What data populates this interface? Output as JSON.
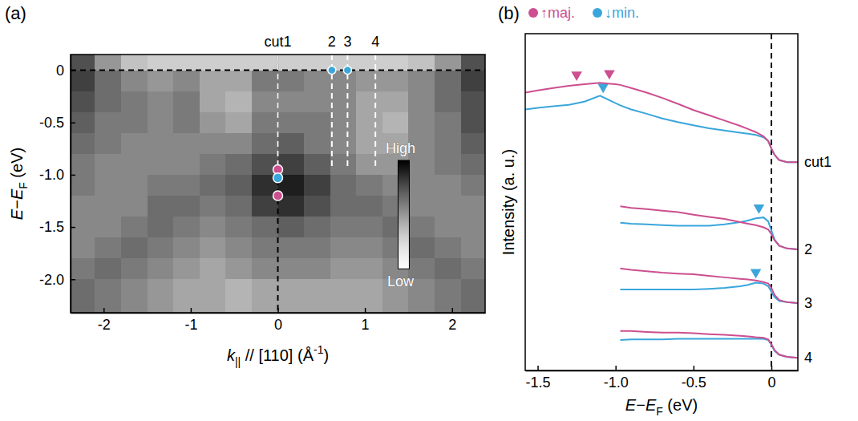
{
  "chart_data": [
    {
      "type": "heatmap",
      "label": "(a)",
      "xlabel": [
        {
          "text": "k",
          "style": "italic"
        },
        {
          "text": "||",
          "style": "sub"
        },
        {
          "text": " // [110] (Å"
        },
        {
          "text": "-1",
          "style": "sup"
        },
        {
          "text": ")"
        }
      ],
      "ylabel": [
        {
          "text": "E",
          "style": "italic"
        },
        {
          "text": "−"
        },
        {
          "text": "E",
          "style": "italic"
        },
        {
          "text": "F",
          "style": "sub"
        },
        {
          "text": " (eV)"
        }
      ],
      "xlim": [
        -2.38,
        2.38
      ],
      "ylim": [
        -2.32,
        0.15
      ],
      "xticks": [
        -2,
        -1,
        0,
        1,
        2
      ],
      "yticks": [
        0,
        -0.5,
        {
          "value": -1,
          "label": "-1.0"
        },
        -1.5,
        {
          "value": -2,
          "label": "-2.0"
        }
      ],
      "x_bins": [
        -2.38,
        -2.1,
        -1.8,
        -1.5,
        -1.2,
        -0.9,
        -0.6,
        -0.3,
        0,
        0.3,
        0.6,
        0.9,
        1.2,
        1.5,
        1.8,
        2.1,
        2.38
      ],
      "y_bins": [
        0.15,
        0,
        -0.2,
        -0.4,
        -0.6,
        -0.8,
        -1.0,
        -1.2,
        -1.4,
        -1.6,
        -1.8,
        -2.0,
        -2.32
      ],
      "z": [
        [
          0.75,
          0.5,
          0.35,
          0.3,
          0.3,
          0.3,
          0.3,
          0.3,
          0.3,
          0.3,
          0.3,
          0.3,
          0.3,
          0.35,
          0.5,
          0.75
        ],
        [
          0.8,
          0.65,
          0.55,
          0.5,
          0.55,
          0.45,
          0.45,
          0.6,
          0.6,
          0.55,
          0.55,
          0.5,
          0.5,
          0.55,
          0.65,
          0.8
        ],
        [
          0.75,
          0.65,
          0.6,
          0.55,
          0.6,
          0.45,
          0.4,
          0.55,
          0.55,
          0.55,
          0.55,
          0.45,
          0.45,
          0.55,
          0.65,
          0.75
        ],
        [
          0.7,
          0.6,
          0.6,
          0.55,
          0.6,
          0.5,
          0.45,
          0.6,
          0.6,
          0.6,
          0.55,
          0.45,
          0.4,
          0.55,
          0.6,
          0.75
        ],
        [
          0.65,
          0.6,
          0.55,
          0.55,
          0.55,
          0.55,
          0.55,
          0.65,
          0.7,
          0.6,
          0.55,
          0.45,
          0.45,
          0.55,
          0.6,
          0.7
        ],
        [
          0.6,
          0.55,
          0.55,
          0.55,
          0.55,
          0.6,
          0.65,
          0.75,
          0.8,
          0.7,
          0.6,
          0.5,
          0.5,
          0.55,
          0.6,
          0.65
        ],
        [
          0.6,
          0.55,
          0.55,
          0.6,
          0.6,
          0.65,
          0.7,
          0.85,
          0.9,
          0.8,
          0.65,
          0.6,
          0.55,
          0.55,
          0.55,
          0.6
        ],
        [
          0.55,
          0.55,
          0.55,
          0.65,
          0.65,
          0.6,
          0.65,
          0.8,
          0.85,
          0.75,
          0.65,
          0.65,
          0.6,
          0.55,
          0.55,
          0.55
        ],
        [
          0.55,
          0.55,
          0.6,
          0.65,
          0.6,
          0.55,
          0.6,
          0.65,
          0.7,
          0.65,
          0.6,
          0.6,
          0.65,
          0.6,
          0.55,
          0.55
        ],
        [
          0.55,
          0.6,
          0.65,
          0.6,
          0.55,
          0.5,
          0.55,
          0.6,
          0.6,
          0.6,
          0.55,
          0.55,
          0.6,
          0.65,
          0.6,
          0.55
        ],
        [
          0.6,
          0.65,
          0.6,
          0.55,
          0.5,
          0.45,
          0.5,
          0.55,
          0.55,
          0.55,
          0.5,
          0.5,
          0.55,
          0.6,
          0.65,
          0.6
        ],
        [
          0.65,
          0.6,
          0.55,
          0.5,
          0.45,
          0.45,
          0.4,
          0.45,
          0.45,
          0.45,
          0.45,
          0.45,
          0.5,
          0.55,
          0.6,
          0.65
        ]
      ],
      "colorbar": {
        "range": [
          0,
          1
        ],
        "ticks": [
          {
            "value": 1,
            "label": "High"
          },
          {
            "value": 0,
            "label": "Low"
          }
        ]
      },
      "hlines": [
        0
      ],
      "vlines": [
        0
      ],
      "cuts": [
        {
          "label": "cut1",
          "k": 0,
          "e_min": -0.95
        },
        {
          "label": "2",
          "k": 0.62,
          "e_min": -0.95
        },
        {
          "label": "3",
          "k": 0.8,
          "e_min": -0.95
        },
        {
          "label": "4",
          "k": 1.12,
          "e_min": -0.95
        }
      ],
      "points": [
        {
          "k": 0,
          "E": -0.95,
          "color": "#cc4f90"
        },
        {
          "k": 0,
          "E": -1.03,
          "color": "#3aa6db"
        },
        {
          "k": 0,
          "E": -1.2,
          "color": "#cc4f90"
        },
        {
          "k": 0.62,
          "E": 0,
          "color": "#3aa6db"
        },
        {
          "k": 0.8,
          "E": 0,
          "color": "#3aa6db"
        }
      ]
    },
    {
      "type": "line",
      "label": "(b)",
      "xlabel": [
        {
          "text": "E",
          "style": "italic"
        },
        {
          "text": "−"
        },
        {
          "text": "E",
          "style": "italic"
        },
        {
          "text": "F",
          "style": "sub"
        },
        {
          "text": " (eV)"
        }
      ],
      "ylabel": "Intensity (a. u.)",
      "xlim": [
        -1.58,
        0.17
      ],
      "ylim": [
        0,
        10.85
      ],
      "xticks": [
        -1.5,
        {
          "value": -1,
          "label": "-1.0"
        },
        -0.5,
        0
      ],
      "tick_labels": "x",
      "legend": "top",
      "vlines": [
        0
      ],
      "curve_labels": [
        "cut1",
        "2",
        "3",
        "4"
      ],
      "x": [
        -1.58,
        -1.5,
        -1.4,
        -1.3,
        -1.2,
        -1.1,
        -1.0,
        -0.97,
        -0.9,
        -0.8,
        -0.7,
        -0.6,
        -0.5,
        -0.4,
        -0.3,
        -0.2,
        -0.15,
        -0.1,
        -0.05,
        -0.02,
        0,
        0.02,
        0.05,
        0.1,
        0.17
      ],
      "series": [
        {
          "name": "↑maj.",
          "color": "#cc4f90",
          "curves": [
            {
              "values": [
                8.95,
                9.02,
                9.1,
                9.17,
                9.22,
                9.27,
                9.22,
                9.2,
                9.1,
                8.95,
                8.78,
                8.59,
                8.39,
                8.22,
                8.05,
                7.88,
                7.78,
                7.68,
                7.54,
                7.39,
                7.15,
                6.95,
                6.78,
                6.71,
                6.71
              ],
              "peaks": [
                -1.25,
                -1.04
              ]
            },
            {
              "values": [
                null,
                null,
                null,
                null,
                null,
                null,
                null,
                5.29,
                5.24,
                5.2,
                5.15,
                5.1,
                5.02,
                4.95,
                4.88,
                4.78,
                4.73,
                4.68,
                4.61,
                4.54,
                4.39,
                4.2,
                4.02,
                3.93,
                3.9
              ]
            },
            {
              "values": [
                null,
                null,
                null,
                null,
                null,
                null,
                null,
                3.29,
                3.24,
                3.2,
                3.15,
                3.12,
                3.1,
                3.05,
                3.0,
                2.95,
                2.93,
                2.9,
                2.85,
                2.8,
                2.66,
                2.44,
                2.27,
                2.2,
                2.17
              ]
            },
            {
              "values": [
                null,
                null,
                null,
                null,
                null,
                null,
                null,
                1.27,
                1.27,
                1.24,
                1.22,
                1.22,
                1.2,
                1.17,
                1.15,
                1.12,
                1.1,
                1.07,
                1.05,
                1.0,
                0.85,
                0.66,
                0.51,
                0.44,
                0.41
              ]
            }
          ]
        },
        {
          "name": "↓min.",
          "color": "#3aa6db",
          "curves": [
            {
              "values": [
                8.41,
                8.46,
                8.51,
                8.56,
                8.66,
                8.85,
                8.61,
                8.54,
                8.41,
                8.27,
                8.12,
                8.0,
                7.9,
                7.8,
                7.73,
                7.66,
                7.63,
                7.59,
                7.51,
                7.39,
                7.15,
                6.95,
                6.78,
                6.71,
                6.71
              ],
              "peaks": [
                -1.08
              ]
            },
            {
              "values": [
                null,
                null,
                null,
                null,
                null,
                null,
                null,
                4.76,
                4.73,
                4.71,
                4.68,
                4.66,
                4.66,
                4.66,
                4.71,
                4.78,
                4.83,
                4.9,
                4.93,
                4.8,
                4.51,
                4.22,
                4.02,
                3.93,
                3.9
              ],
              "peaks": [
                -0.08
              ]
            },
            {
              "values": [
                null,
                null,
                null,
                null,
                null,
                null,
                null,
                2.61,
                2.61,
                2.61,
                2.61,
                2.61,
                2.61,
                2.63,
                2.66,
                2.71,
                2.76,
                2.83,
                2.8,
                2.71,
                2.54,
                2.37,
                2.24,
                2.2,
                2.17
              ],
              "peaks": [
                -0.1
              ]
            },
            {
              "values": [
                null,
                null,
                null,
                null,
                null,
                null,
                null,
                0.98,
                1.0,
                1.0,
                1.0,
                1.02,
                1.02,
                1.02,
                1.02,
                1.02,
                1.02,
                1.02,
                1.02,
                0.98,
                0.83,
                0.63,
                0.51,
                0.44,
                0.41
              ]
            }
          ]
        }
      ]
    }
  ]
}
